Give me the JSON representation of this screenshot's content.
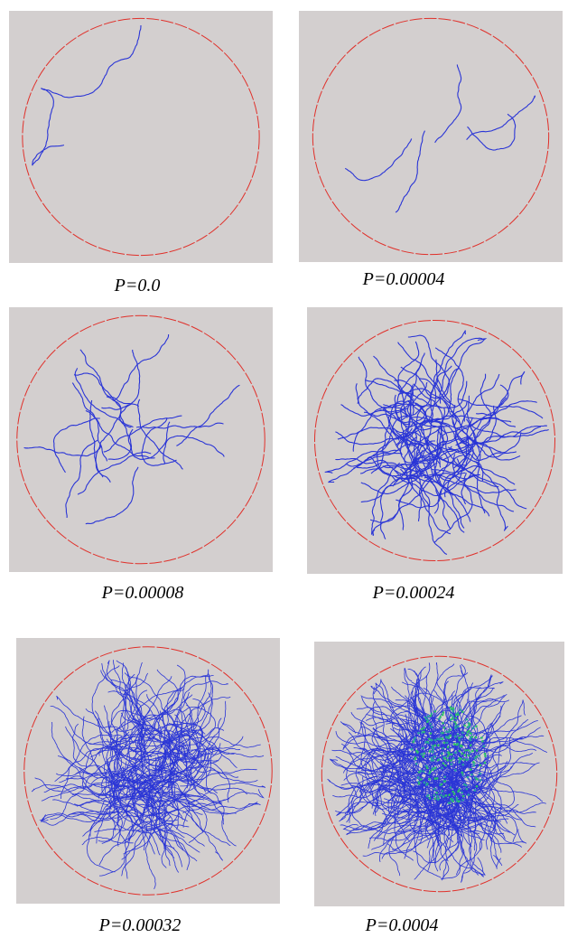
{
  "panels": [
    {
      "caption": "P=0.0"
    },
    {
      "caption": "P=0.00004"
    },
    {
      "caption": "P=0.00008"
    },
    {
      "caption": "P=0.00024"
    },
    {
      "caption": "P=0.00032"
    },
    {
      "caption": "P=0.0004"
    }
  ]
}
